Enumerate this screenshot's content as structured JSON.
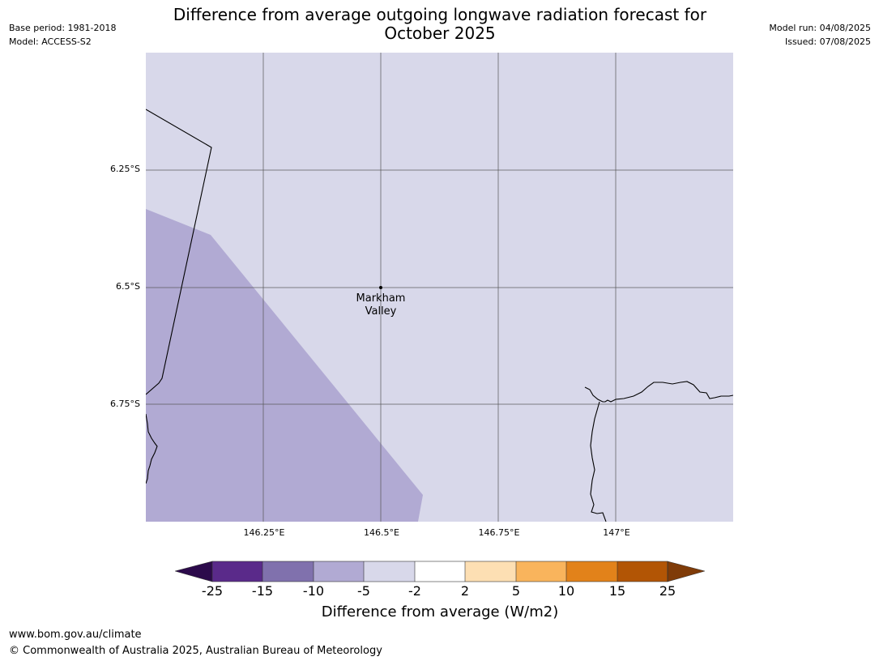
{
  "header": {
    "base_period": "Base period: 1981-2018",
    "model": "Model: ACCESS-S2",
    "model_run": "Model run: 04/08/2025",
    "issued": "Issued: 07/08/2025",
    "title_line1": "Difference from average outgoing longwave radiation forecast for",
    "title_line2": "October 2025"
  },
  "map": {
    "place_marker": {
      "name_line1": "Markham",
      "name_line2": "Valley",
      "lon": 146.5,
      "lat": -6.5
    },
    "lat_labels": [
      "6.25°S",
      "6.5°S",
      "6.75°S"
    ],
    "lon_labels": [
      "146.25°E",
      "146.5°E",
      "146.75°E",
      "147°E"
    ],
    "field_colors": {
      "background": "#d8d8ea",
      "lower_class": "#b1aad3"
    },
    "field_classes": [
      "-2 to -5",
      "-5 to -10"
    ]
  },
  "colorbar": {
    "label": "Difference from average (W/m2)",
    "ticks": [
      "-25",
      "-15",
      "-10",
      "-5",
      "-2",
      "2",
      "5",
      "10",
      "15",
      "25"
    ],
    "colors": [
      "#2c0a4b",
      "#5a2a8a",
      "#8071ad",
      "#b1aad3",
      "#d8d8ea",
      "#ffffff",
      "#fddfb3",
      "#f9b45c",
      "#e2821a",
      "#b25505",
      "#7f3b08"
    ]
  },
  "footer": {
    "url": "www.bom.gov.au/climate",
    "copyright": "© Commonwealth of Australia 2025, Australian Bureau of Meteorology"
  }
}
